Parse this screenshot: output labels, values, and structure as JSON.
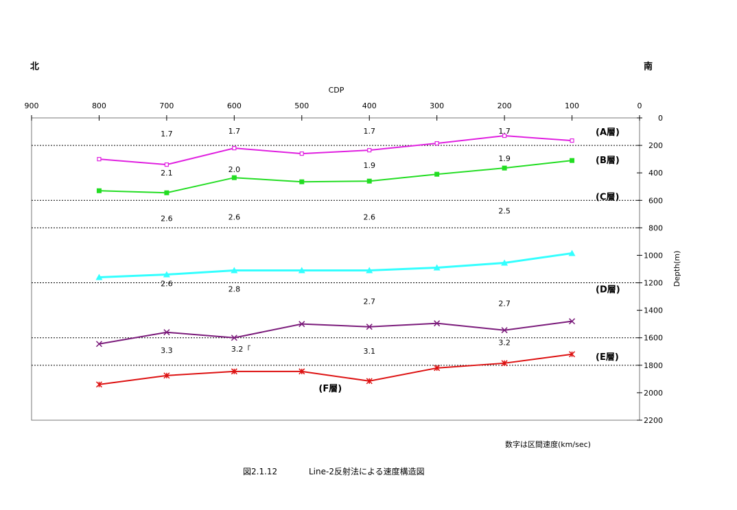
{
  "header": {
    "north": "北",
    "south": "南"
  },
  "footer": {
    "note": "数字は区間速度(km/sec)",
    "caption_num": "図2.1.12",
    "caption_text": "Line-2反射法による速度構造図"
  },
  "chart_data": {
    "type": "line",
    "xlabel": "CDP",
    "ylabel": "Depth(m)",
    "xlim": [
      900,
      0
    ],
    "ylim": [
      2200,
      0
    ],
    "x_ticks": [
      "900",
      "800",
      "700",
      "600",
      "500",
      "400",
      "300",
      "200",
      "100",
      "0"
    ],
    "y_ticks": [
      "0",
      "200",
      "400",
      "600",
      "800",
      "1000",
      "1200",
      "1400",
      "1600",
      "1800",
      "2000",
      "2200"
    ],
    "gridlines_y": [
      200,
      600,
      800,
      1200,
      1600,
      1800
    ],
    "series": [
      {
        "name": "(A層)",
        "color": "#e020e0",
        "marker": "open-square",
        "points": [
          [
            800,
            300
          ],
          [
            700,
            340
          ],
          [
            600,
            220
          ],
          [
            500,
            260
          ],
          [
            400,
            235
          ],
          [
            300,
            185
          ],
          [
            200,
            130
          ],
          [
            100,
            165
          ]
        ]
      },
      {
        "name": "(B層)",
        "color": "#22dd22",
        "marker": "filled-square",
        "points": [
          [
            800,
            530
          ],
          [
            700,
            545
          ],
          [
            600,
            435
          ],
          [
            500,
            465
          ],
          [
            400,
            460
          ],
          [
            300,
            410
          ],
          [
            200,
            365
          ],
          [
            100,
            310
          ]
        ]
      },
      {
        "name": "(D層)",
        "color": "#33ffff",
        "marker": "triangle",
        "points": [
          [
            800,
            1160
          ],
          [
            700,
            1140
          ],
          [
            600,
            1110
          ],
          [
            500,
            1110
          ],
          [
            400,
            1110
          ],
          [
            300,
            1090
          ],
          [
            200,
            1055
          ],
          [
            100,
            985
          ]
        ]
      },
      {
        "name": "(E層)",
        "color": "#7a1a7a",
        "marker": "x",
        "points": [
          [
            800,
            1645
          ],
          [
            700,
            1560
          ],
          [
            600,
            1600
          ],
          [
            500,
            1500
          ],
          [
            400,
            1520
          ],
          [
            300,
            1495
          ],
          [
            200,
            1545
          ],
          [
            100,
            1480
          ]
        ]
      },
      {
        "name": "(F層)",
        "color": "#dd1111",
        "marker": "star",
        "points": [
          [
            800,
            1940
          ],
          [
            700,
            1875
          ],
          [
            600,
            1845
          ],
          [
            500,
            1845
          ],
          [
            400,
            1915
          ],
          [
            300,
            1820
          ],
          [
            200,
            1785
          ],
          [
            100,
            1720
          ]
        ]
      }
    ],
    "layer_labels": [
      {
        "text": "(A層)",
        "y": 100
      },
      {
        "text": "(B層)",
        "y": 305
      },
      {
        "text": "(C層)",
        "y": 570
      },
      {
        "text": "(D層)",
        "y": 1245
      },
      {
        "text": "(E層)",
        "y": 1735
      },
      {
        "text": "(F層)",
        "x": 475,
        "y": 1965
      }
    ],
    "velocity_labels": [
      {
        "text": "1.7",
        "x": 700,
        "y": 115
      },
      {
        "text": "1.7",
        "x": 600,
        "y": 95
      },
      {
        "text": "1.7",
        "x": 400,
        "y": 95
      },
      {
        "text": "1.7",
        "x": 200,
        "y": 95
      },
      {
        "text": "2.1",
        "x": 700,
        "y": 400
      },
      {
        "text": "2.0",
        "x": 600,
        "y": 375
      },
      {
        "text": "1.9",
        "x": 400,
        "y": 345
      },
      {
        "text": "1.9",
        "x": 200,
        "y": 295
      },
      {
        "text": "2.6",
        "x": 700,
        "y": 730
      },
      {
        "text": "2.6",
        "x": 600,
        "y": 720
      },
      {
        "text": "2.6",
        "x": 400,
        "y": 720
      },
      {
        "text": "2.5",
        "x": 200,
        "y": 675
      },
      {
        "text": "2.6",
        "x": 700,
        "y": 1205
      },
      {
        "text": "2.8",
        "x": 600,
        "y": 1245
      },
      {
        "text": "2.7",
        "x": 400,
        "y": 1335
      },
      {
        "text": "2.7",
        "x": 200,
        "y": 1350
      },
      {
        "text": "3.3",
        "x": 700,
        "y": 1690
      },
      {
        "text": "3.2「",
        "x": 590,
        "y": 1680
      },
      {
        "text": "3.1",
        "x": 400,
        "y": 1695
      },
      {
        "text": "3.2",
        "x": 200,
        "y": 1635
      }
    ]
  }
}
